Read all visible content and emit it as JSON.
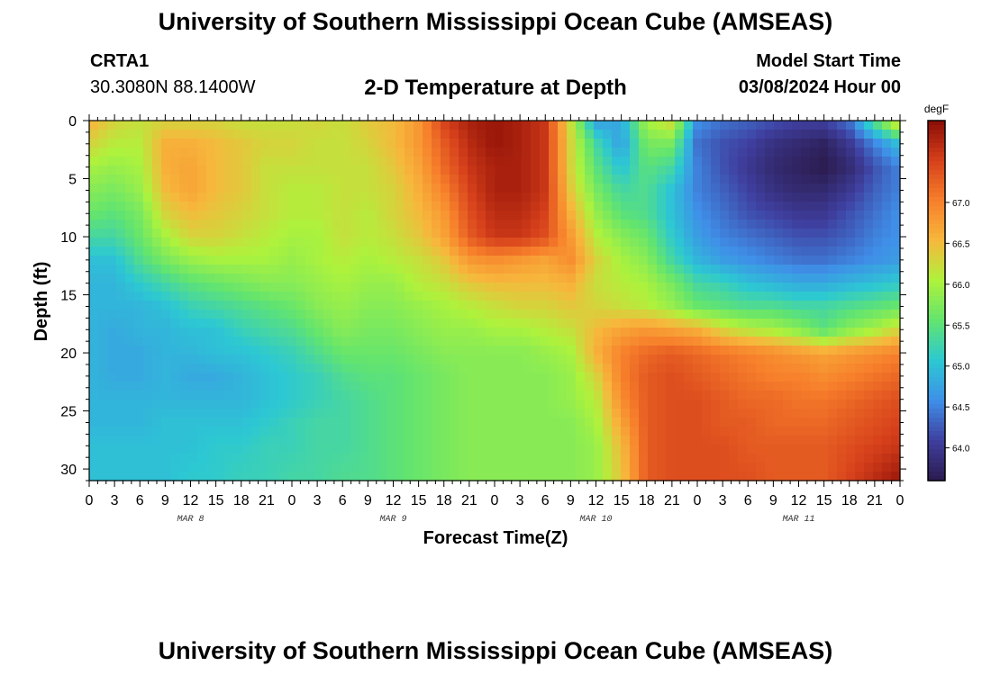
{
  "header": {
    "title": "University of Southern Mississippi Ocean Cube (AMSEAS)",
    "station_id": "CRTA1",
    "coordinates": "30.3080N  88.1400W",
    "plot_title": "2-D Temperature at Depth",
    "start_label": "Model Start Time",
    "start_value": "03/08/2024 Hour 00"
  },
  "footer": {
    "title": "University of Southern Mississippi Ocean Cube (AMSEAS)"
  },
  "chart_data": {
    "type": "heatmap",
    "title": "2-D Temperature at Depth",
    "xlabel": "Forecast Time(Z)",
    "ylabel": "Depth (ft)",
    "x_ticks": [
      "0",
      "3",
      "6",
      "9",
      "12",
      "15",
      "18",
      "21",
      "0",
      "3",
      "6",
      "9",
      "12",
      "15",
      "18",
      "21",
      "0",
      "3",
      "6",
      "9",
      "12",
      "15",
      "18",
      "21",
      "0",
      "3",
      "6",
      "9",
      "12",
      "15",
      "18",
      "21",
      "0"
    ],
    "day_labels": [
      "MAR 8",
      "MAR 9",
      "MAR 10",
      "MAR 11"
    ],
    "xlim_hours": [
      0,
      96
    ],
    "y_ticks": [
      0,
      5,
      10,
      15,
      20,
      25,
      30
    ],
    "ylim_ft": [
      0,
      31
    ],
    "colorbar": {
      "unit": "degF",
      "ticks": [
        "64.0",
        "64.5",
        "65.0",
        "65.5",
        "66.0",
        "66.5",
        "67.0"
      ],
      "range": [
        63.6,
        68.0
      ],
      "colors": [
        "#2b1b4e",
        "#3f3f9f",
        "#3f8fe8",
        "#2cc8d3",
        "#62e46f",
        "#aef23c",
        "#f7b73c",
        "#f77f2b",
        "#d6401b",
        "#8a0c05"
      ]
    },
    "depths_ft": [
      0,
      2,
      4,
      6,
      8,
      10,
      12,
      14,
      16,
      18,
      20,
      22,
      24,
      26,
      28,
      31
    ],
    "times_hours": [
      0,
      3,
      6,
      9,
      12,
      15,
      18,
      21,
      24,
      27,
      30,
      33,
      36,
      39,
      42,
      45,
      48,
      51,
      54,
      57,
      60,
      63,
      66,
      69,
      72,
      75,
      78,
      81,
      84,
      87,
      90,
      93,
      96
    ],
    "values": [
      [
        66.6,
        66.3,
        66.2,
        66.3,
        66.3,
        66.3,
        66.2,
        66.2,
        66.2,
        66.3,
        66.2,
        66.4,
        66.5,
        66.8,
        67.5,
        67.8,
        67.9,
        67.8,
        67.6,
        66.2,
        64.7,
        64.8,
        66.0,
        66.3,
        64.6,
        64.4,
        64.3,
        64.2,
        64.1,
        64.1,
        64.4,
        65.5,
        66.5
      ],
      [
        66.3,
        66.1,
        66.1,
        66.6,
        66.6,
        66.5,
        66.4,
        66.3,
        66.3,
        66.2,
        66.2,
        66.3,
        66.5,
        66.8,
        67.3,
        67.7,
        67.9,
        67.8,
        67.6,
        66.3,
        65.3,
        64.7,
        65.7,
        65.7,
        64.4,
        64.2,
        64.1,
        63.9,
        63.8,
        63.7,
        64.0,
        64.5,
        65.0
      ],
      [
        66.0,
        65.9,
        66.0,
        66.6,
        66.7,
        66.5,
        66.4,
        66.2,
        66.2,
        66.2,
        66.2,
        66.2,
        66.4,
        66.7,
        67.2,
        67.6,
        67.8,
        67.8,
        67.6,
        66.3,
        65.5,
        65.0,
        65.5,
        65.3,
        64.5,
        64.2,
        64.0,
        63.8,
        63.7,
        63.6,
        63.8,
        64.2,
        64.5
      ],
      [
        65.8,
        65.7,
        65.9,
        66.5,
        66.7,
        66.5,
        66.4,
        66.2,
        66.1,
        66.1,
        66.2,
        66.2,
        66.3,
        66.6,
        67.0,
        67.5,
        67.8,
        67.8,
        67.6,
        66.4,
        65.7,
        65.3,
        65.4,
        65.0,
        64.5,
        64.3,
        64.1,
        63.9,
        63.8,
        63.8,
        64.0,
        64.3,
        64.5
      ],
      [
        65.6,
        65.5,
        65.7,
        66.3,
        66.5,
        66.4,
        66.3,
        66.2,
        66.1,
        66.1,
        66.2,
        66.1,
        66.3,
        66.5,
        66.8,
        67.4,
        67.7,
        67.7,
        67.5,
        66.6,
        65.9,
        65.5,
        65.4,
        65.0,
        64.6,
        64.4,
        64.2,
        64.1,
        64.0,
        64.0,
        64.2,
        64.4,
        64.6
      ],
      [
        65.3,
        65.3,
        65.6,
        66.0,
        66.3,
        66.3,
        66.2,
        66.1,
        66.0,
        66.0,
        66.2,
        66.1,
        66.2,
        66.4,
        66.7,
        67.3,
        67.6,
        67.6,
        67.4,
        66.8,
        66.1,
        65.8,
        65.6,
        65.1,
        64.7,
        64.5,
        64.4,
        64.3,
        64.2,
        64.2,
        64.3,
        64.5,
        64.6
      ],
      [
        65.0,
        65.0,
        65.4,
        65.7,
        65.9,
        66.0,
        66.0,
        66.0,
        65.9,
        66.0,
        66.1,
        66.0,
        66.1,
        66.2,
        66.4,
        66.8,
        66.9,
        66.8,
        66.7,
        66.9,
        66.3,
        66.0,
        65.8,
        65.3,
        64.9,
        64.7,
        64.6,
        64.5,
        64.4,
        64.4,
        64.5,
        64.6,
        64.7
      ],
      [
        64.9,
        64.9,
        65.1,
        65.3,
        65.5,
        65.6,
        65.7,
        65.8,
        65.8,
        65.9,
        66.0,
        65.9,
        65.9,
        66.1,
        66.2,
        66.4,
        66.5,
        66.5,
        66.5,
        66.6,
        66.2,
        66.1,
        66.0,
        65.7,
        65.3,
        65.2,
        65.0,
        64.9,
        64.8,
        64.8,
        64.9,
        65.0,
        65.1
      ],
      [
        64.9,
        64.9,
        64.9,
        65.0,
        65.2,
        65.3,
        65.4,
        65.5,
        65.6,
        65.8,
        65.9,
        65.8,
        65.8,
        65.9,
        66.0,
        66.1,
        66.2,
        66.3,
        66.3,
        66.4,
        66.3,
        66.2,
        66.1,
        65.9,
        65.6,
        65.5,
        65.4,
        65.4,
        65.3,
        65.3,
        65.4,
        65.5,
        65.6
      ],
      [
        64.9,
        64.8,
        64.9,
        64.9,
        65.0,
        65.0,
        65.2,
        65.3,
        65.4,
        65.6,
        65.8,
        65.7,
        65.7,
        65.8,
        65.9,
        65.9,
        66.0,
        66.0,
        66.1,
        66.2,
        66.5,
        66.7,
        66.8,
        66.7,
        66.6,
        66.3,
        66.1,
        66.0,
        65.8,
        65.5,
        65.8,
        66.0,
        66.3
      ],
      [
        64.9,
        64.8,
        64.8,
        64.9,
        64.9,
        65.0,
        65.0,
        65.1,
        65.2,
        65.4,
        65.6,
        65.6,
        65.6,
        65.7,
        65.8,
        65.8,
        65.8,
        65.8,
        65.9,
        66.0,
        66.6,
        67.0,
        67.2,
        67.3,
        67.2,
        67.1,
        67.0,
        66.9,
        66.8,
        66.7,
        66.8,
        66.9,
        67.0
      ],
      [
        64.9,
        64.8,
        64.8,
        64.9,
        64.8,
        64.8,
        64.9,
        65.0,
        65.1,
        65.2,
        65.4,
        65.5,
        65.5,
        65.6,
        65.7,
        65.8,
        65.8,
        65.8,
        65.8,
        65.9,
        66.3,
        67.0,
        67.3,
        67.4,
        67.3,
        67.2,
        67.1,
        67.0,
        67.0,
        66.9,
        67.0,
        67.1,
        67.2
      ],
      [
        64.9,
        64.9,
        64.9,
        64.9,
        64.9,
        64.9,
        64.9,
        65.0,
        65.1,
        65.2,
        65.3,
        65.4,
        65.5,
        65.6,
        65.7,
        65.8,
        65.8,
        65.8,
        65.8,
        65.9,
        66.1,
        66.9,
        67.3,
        67.4,
        67.4,
        67.3,
        67.2,
        67.2,
        67.1,
        67.1,
        67.2,
        67.3,
        67.4
      ],
      [
        64.9,
        64.9,
        64.9,
        65.0,
        65.0,
        65.0,
        65.0,
        65.1,
        65.2,
        65.3,
        65.3,
        65.4,
        65.5,
        65.6,
        65.7,
        65.8,
        65.8,
        65.8,
        65.8,
        65.8,
        66.0,
        66.7,
        67.3,
        67.4,
        67.4,
        67.3,
        67.3,
        67.2,
        67.2,
        67.2,
        67.3,
        67.4,
        67.5
      ],
      [
        65.0,
        65.0,
        65.0,
        65.0,
        65.0,
        65.1,
        65.1,
        65.2,
        65.2,
        65.3,
        65.3,
        65.4,
        65.5,
        65.6,
        65.7,
        65.8,
        65.8,
        65.8,
        65.8,
        65.8,
        65.9,
        66.5,
        67.3,
        67.4,
        67.4,
        67.4,
        67.3,
        67.3,
        67.3,
        67.3,
        67.4,
        67.5,
        67.6
      ],
      [
        65.0,
        65.0,
        65.0,
        65.0,
        65.1,
        65.1,
        65.2,
        65.2,
        65.3,
        65.3,
        65.4,
        65.4,
        65.5,
        65.6,
        65.7,
        65.8,
        65.8,
        65.8,
        65.8,
        65.8,
        65.9,
        66.4,
        67.3,
        67.4,
        67.4,
        67.4,
        67.4,
        67.3,
        67.3,
        67.3,
        67.5,
        67.7,
        67.9
      ]
    ]
  }
}
